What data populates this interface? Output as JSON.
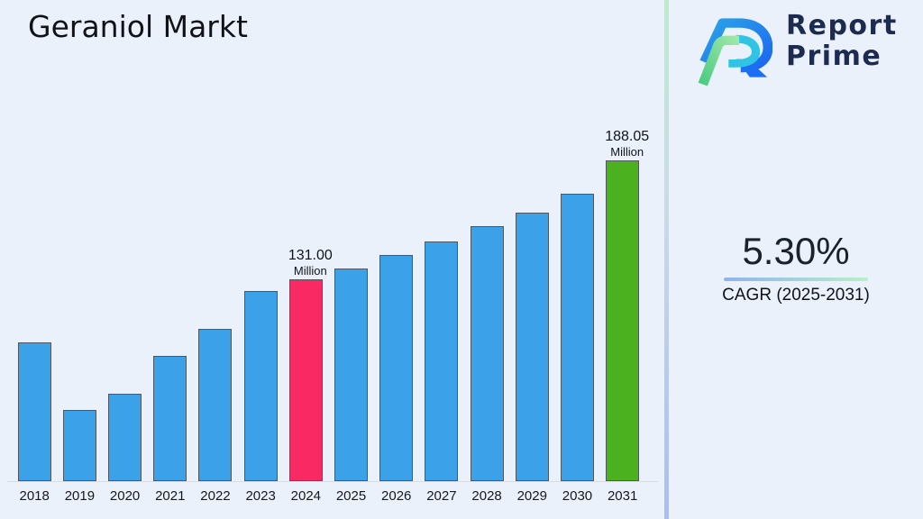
{
  "title": "Geraniol Markt",
  "logo": {
    "line1": "Report",
    "line2": "Prime",
    "icon": "report-prime-r-mark"
  },
  "cagr": {
    "value": "5.30%",
    "label": "CAGR (2025-2031)"
  },
  "colors": {
    "background": "#ebf1fb",
    "bar_blue": "#3ba2e9",
    "bar_pink": "#f92963",
    "bar_green": "#4cb11e",
    "bar_border": "#51575e",
    "divider_top": "#b7efc8",
    "divider_bottom": "#a6bff3",
    "logo_text": "#1d2b50"
  },
  "chart_data": {
    "type": "bar",
    "title": "Geraniol Markt",
    "categories": [
      "2018",
      "2019",
      "2020",
      "2021",
      "2022",
      "2023",
      "2024",
      "2025",
      "2026",
      "2027",
      "2028",
      "2029",
      "2030",
      "2031"
    ],
    "values": [
      100.7,
      68.2,
      76.0,
      94.3,
      107.3,
      125.5,
      131.0,
      136.1,
      142.6,
      149.3,
      156.7,
      163.1,
      172.1,
      188.05
    ],
    "unit": "Million",
    "ylim": [
      34,
      200
    ],
    "grid": false,
    "legend": false,
    "annotations": [
      {
        "category": "2024",
        "label": "131.00",
        "sublabel": "Million",
        "color": "#f92963"
      },
      {
        "category": "2031",
        "label": "188.05",
        "sublabel": "Million",
        "color": "#4cb11e"
      }
    ]
  }
}
